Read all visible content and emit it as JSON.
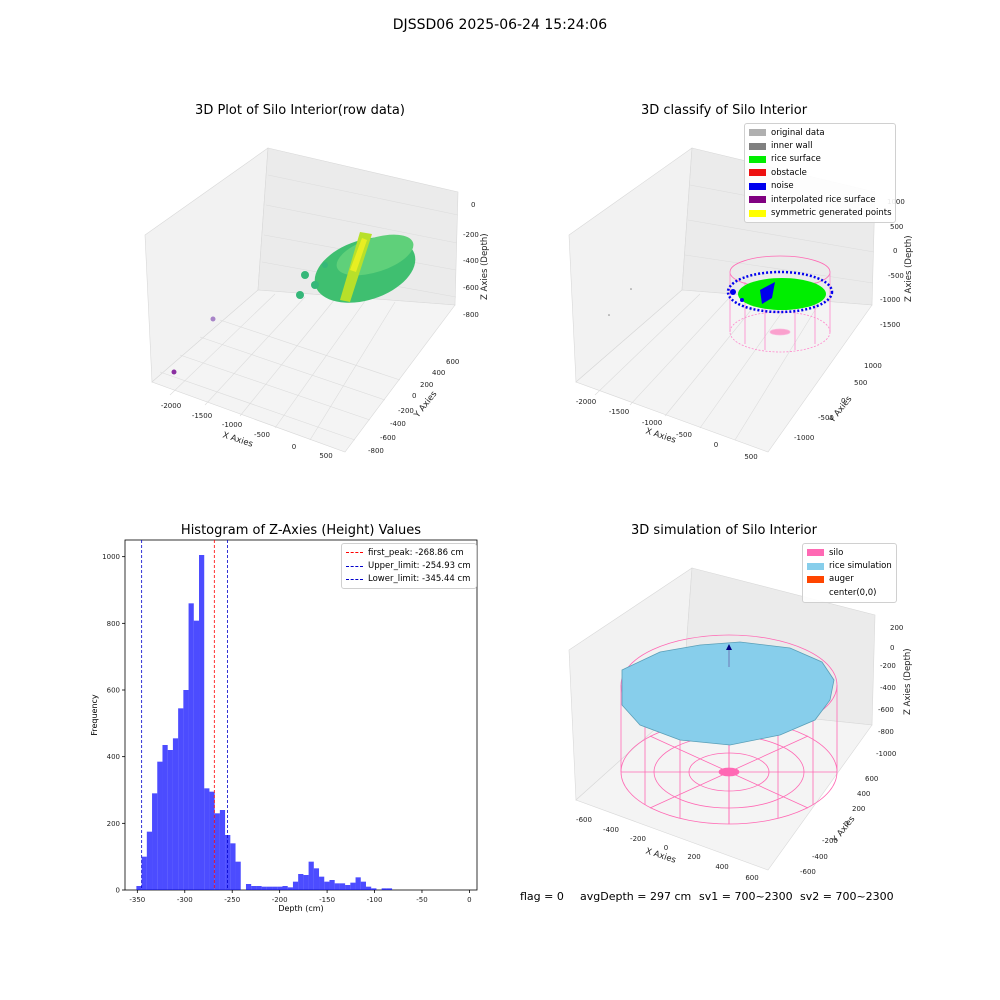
{
  "figure": {
    "suptitle": "DJSSD06 2025-06-24 15:24:06"
  },
  "panel_raw": {
    "title": "3D Plot of Silo Interior(row data)",
    "xlabel": "X Axies",
    "ylabel": "Y Axies",
    "zlabel": "Z Axies (Depth)",
    "x_ticks": [
      "-2000",
      "-1500",
      "-1000",
      "-500",
      "0",
      "500"
    ],
    "y_ticks": [
      "-800",
      "-600",
      "-400",
      "-200",
      "0",
      "200",
      "400",
      "600"
    ],
    "z_ticks": [
      "-800",
      "-600",
      "-400",
      "-200",
      "0"
    ]
  },
  "panel_classify": {
    "title": "3D classify of Silo Interior",
    "xlabel": "X Axies",
    "ylabel": "Y Axies",
    "zlabel": "Z Axies (Depth)",
    "x_ticks": [
      "-2000",
      "-1500",
      "-1000",
      "-500",
      "0",
      "500"
    ],
    "y_ticks": [
      "-1000",
      "-500",
      "0",
      "500",
      "1000"
    ],
    "z_ticks": [
      "-1500",
      "-1000",
      "-500",
      "0",
      "500",
      "1000"
    ],
    "legend": [
      {
        "label": "original data",
        "color": "#b0b0b0"
      },
      {
        "label": "inner wall",
        "color": "#808080"
      },
      {
        "label": "rice surface",
        "color": "#00ee00"
      },
      {
        "label": "obstacle",
        "color": "#ee1111"
      },
      {
        "label": "noise",
        "color": "#0000ee"
      },
      {
        "label": "interpolated rice surface",
        "color": "#800080"
      },
      {
        "label": "symmetric generated points",
        "color": "#ffff00"
      }
    ]
  },
  "panel_sim": {
    "title": "3D simulation of Silo Interior",
    "xlabel": "X Axies",
    "ylabel": "Y Axies",
    "zlabel": "Z Axies (Depth)",
    "x_ticks": [
      "-600",
      "-400",
      "-200",
      "0",
      "200",
      "400",
      "600"
    ],
    "y_ticks": [
      "-600",
      "-400",
      "-200",
      "0",
      "200",
      "400",
      "600"
    ],
    "z_ticks": [
      "-1000",
      "-800",
      "-600",
      "-400",
      "-200",
      "0",
      "200"
    ],
    "legend": [
      {
        "label": "silo",
        "color": "#ff69b4"
      },
      {
        "label": "rice simulation",
        "color": "#87ceeb"
      },
      {
        "label": "auger",
        "color": "#ff4500"
      },
      {
        "label": "center(0,0)",
        "color": ""
      }
    ]
  },
  "footer": {
    "flag": "flag = 0",
    "avg": "avgDepth = 297 cm",
    "sv1": "sv1 = 700~2300",
    "sv2": "sv2 = 700~2300"
  },
  "chart_data": {
    "type": "bar",
    "title": "Histogram of Z-Axies (Height) Values",
    "xlabel": "Depth (cm)",
    "ylabel": "Frequency",
    "xlim": [
      -363,
      8
    ],
    "ylim": [
      0,
      1050
    ],
    "x_ticks": [
      -350,
      -300,
      -250,
      -200,
      -150,
      -100,
      -50,
      0
    ],
    "y_ticks": [
      0,
      200,
      400,
      600,
      800,
      1000
    ],
    "bin_start": -351,
    "bin_width": 5.5,
    "values": [
      12,
      100,
      175,
      290,
      385,
      435,
      420,
      455,
      545,
      600,
      860,
      808,
      1005,
      305,
      295,
      230,
      240,
      165,
      140,
      85,
      0,
      18,
      12,
      12,
      10,
      10,
      10,
      10,
      12,
      8,
      25,
      48,
      45,
      85,
      65,
      40,
      25,
      30,
      20,
      20,
      15,
      22,
      38,
      25,
      10,
      5,
      0,
      5,
      5
    ],
    "bar_color": "#0000ff",
    "vlines": [
      {
        "x": -268.86,
        "label": "first_peak: -268.86 cm",
        "color": "#ff0000"
      },
      {
        "x": -254.93,
        "label": "Upper_limit: -254.93 cm",
        "color": "#0000cc"
      },
      {
        "x": -345.44,
        "label": "Lower_limit: -345.44 cm",
        "color": "#0000cc"
      }
    ],
    "legend_position": "top-right"
  }
}
